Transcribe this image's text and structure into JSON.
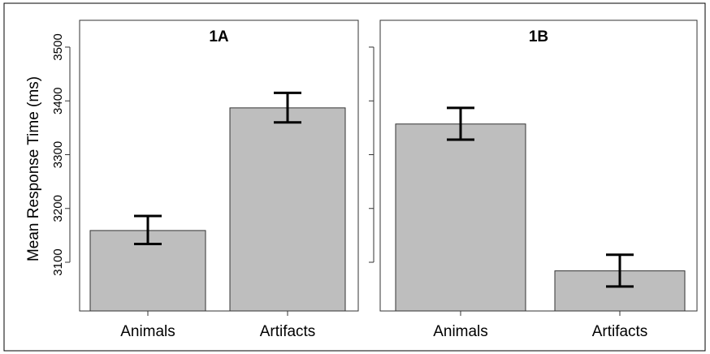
{
  "colors": {
    "bar_fill": "#bebebe",
    "bar_stroke": "#333333",
    "axis": "#333333",
    "frame": "#000000",
    "error_bar": "#000000"
  },
  "ylabel": "Mean Response Time (ms)",
  "chart_data": [
    {
      "type": "bar",
      "title": "1A",
      "categories": [
        "Animals",
        "Artifacts"
      ],
      "values": [
        3159,
        3387
      ],
      "error_low": [
        3134,
        3360
      ],
      "error_high": [
        3186,
        3415
      ],
      "ylabel": "Mean Response Time (ms)",
      "ylim": [
        3010,
        3515
      ],
      "yticks": [
        3100,
        3200,
        3300,
        3400,
        3500
      ],
      "ytick_labels": [
        "3100",
        "3200",
        "3300",
        "3400",
        "3500"
      ],
      "grid": false
    },
    {
      "type": "bar",
      "title": "1B",
      "categories": [
        "Animals",
        "Artifacts"
      ],
      "values": [
        3357,
        3084
      ],
      "error_low": [
        3328,
        3055
      ],
      "error_high": [
        3387,
        3114
      ],
      "ylim": [
        3010,
        3515
      ],
      "yticks": [
        3100,
        3200,
        3300,
        3400,
        3500
      ],
      "grid": false
    }
  ]
}
